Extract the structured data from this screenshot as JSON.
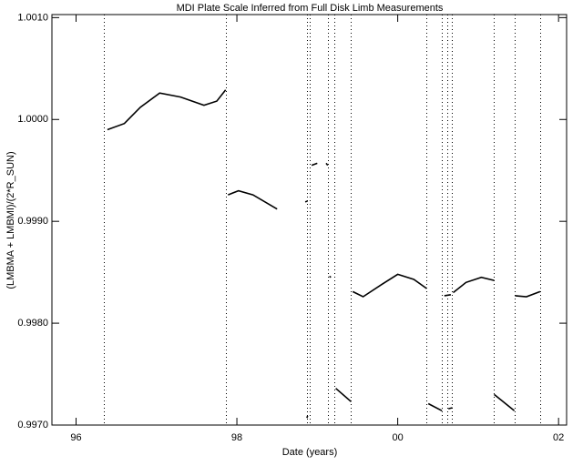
{
  "chart_data": {
    "type": "line",
    "title": "MDI Plate Scale Inferred from Full Disk Limb Measurements",
    "xlabel": "Date (years)",
    "ylabel": "(LMBMA + LMBMI)/(2*R_SUN)",
    "xlim": [
      95.7,
      102.1
    ],
    "ylim": [
      0.997,
      1.00103
    ],
    "xticks": [
      96,
      98,
      {
        "value": 100,
        "label": "00"
      },
      {
        "value": 102,
        "label": "02"
      }
    ],
    "yticks": [
      {
        "value": 0.997,
        "label": "0.9970"
      },
      {
        "value": 0.998,
        "label": "0.9980"
      },
      {
        "value": 0.999,
        "label": "0.9990"
      },
      {
        "value": 1.0,
        "label": "1.0000"
      },
      {
        "value": 1.001,
        "label": "1.0010"
      }
    ],
    "vlines": [
      96.35,
      97.86,
      98.87,
      98.9,
      99.13,
      99.21,
      99.42,
      100.36,
      100.55,
      100.62,
      100.67,
      101.19,
      101.45,
      101.77
    ],
    "series": [
      {
        "color": "#000000",
        "x": [
          96.39,
          96.6,
          96.8,
          97.04,
          97.3,
          97.59,
          97.75,
          97.86,
          null,
          97.89,
          98.02,
          98.2,
          98.5,
          null,
          98.85,
          98.88,
          null,
          98.93,
          99.0,
          null,
          99.11,
          99.13,
          null,
          99.15,
          99.17,
          null,
          98.87,
          98.88,
          null,
          99.23,
          99.42,
          null,
          99.44,
          99.57,
          99.8,
          100.0,
          100.2,
          100.36,
          null,
          100.38,
          100.55,
          null,
          100.58,
          100.66,
          null,
          100.63,
          100.68,
          null,
          100.69,
          100.85,
          101.04,
          101.2,
          null,
          101.2,
          101.45,
          null,
          101.46,
          101.6,
          101.77
        ],
        "values": [
          0.9999,
          0.99996,
          1.00012,
          1.00026,
          1.00022,
          1.00014,
          1.00018,
          1.00029,
          null,
          0.99926,
          0.9993,
          0.99926,
          0.99912,
          null,
          0.99919,
          0.9992,
          null,
          0.99955,
          0.99957,
          null,
          0.99957,
          0.99955,
          null,
          0.99846,
          0.99845,
          null,
          0.99707,
          0.99709,
          null,
          0.99736,
          0.99723,
          null,
          0.99831,
          0.99826,
          0.99838,
          0.99848,
          0.99843,
          0.99834,
          null,
          0.99721,
          0.99714,
          null,
          0.99827,
          0.99828,
          null,
          0.99716,
          0.99717,
          null,
          0.9983,
          0.9984,
          0.99845,
          0.99842,
          null,
          0.9973,
          0.99714,
          null,
          0.99827,
          0.99826,
          0.99831
        ]
      }
    ]
  }
}
